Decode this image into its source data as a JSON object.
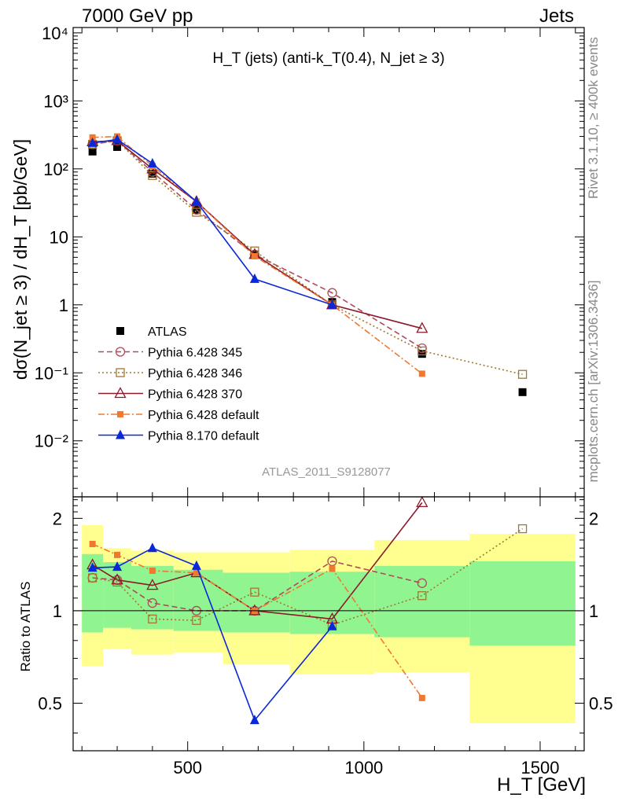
{
  "header": {
    "left": "7000 GeV pp",
    "right": "Jets"
  },
  "side_texts": {
    "rivet": "Rivet 3.1.10, ≥ 400k events",
    "mcplots": "mcplots.cern.ch [arXiv:1306.3436]"
  },
  "chart_data": {
    "type": "line",
    "title": "H_T (jets) (anti-k_T(0.4), N_jet ≥ 3)",
    "analysis_label": "ATLAS_2011_S9128077",
    "xlabel": "H_T [GeV]",
    "ylabel": "dσ(N_jet ≥ 3) / dH_T [pb/GeV]",
    "ratio_ylabel": "Ratio to ATLAS",
    "xlim": [
      175,
      1625
    ],
    "ylim": [
      0.0015,
      12000
    ],
    "ylog": true,
    "ratio_ylim": [
      0.35,
      2.35
    ],
    "x_ticks": [
      500,
      1000,
      1500
    ],
    "y_ticks": [
      {
        "v": 0.01,
        "label": "10⁻²"
      },
      {
        "v": 0.1,
        "label": "10⁻¹"
      },
      {
        "v": 1,
        "label": "1"
      },
      {
        "v": 10,
        "label": "10"
      },
      {
        "v": 100,
        "label": "10²"
      },
      {
        "v": 1000,
        "label": "10³"
      },
      {
        "v": 10000,
        "label": "10⁴"
      }
    ],
    "ratio_ticks": [
      0.5,
      1,
      2
    ],
    "x": [
      230,
      300,
      400,
      525,
      690,
      910,
      1165,
      1450
    ],
    "bands": [
      {
        "x0": 200,
        "x1": 260,
        "y1lo": 0.85,
        "y1hi": 1.53,
        "y2lo": 0.66,
        "y2hi": 1.9
      },
      {
        "x0": 260,
        "x1": 340,
        "y1lo": 0.88,
        "y1hi": 1.44,
        "y2lo": 0.75,
        "y2hi": 1.6
      },
      {
        "x0": 340,
        "x1": 460,
        "y1lo": 0.87,
        "y1hi": 1.4,
        "y2lo": 0.72,
        "y2hi": 1.57
      },
      {
        "x0": 460,
        "x1": 600,
        "y1lo": 0.86,
        "y1hi": 1.36,
        "y2lo": 0.73,
        "y2hi": 1.55
      },
      {
        "x0": 600,
        "x1": 790,
        "y1lo": 0.85,
        "y1hi": 1.33,
        "y2lo": 0.67,
        "y2hi": 1.55
      },
      {
        "x0": 790,
        "x1": 1030,
        "y1lo": 0.84,
        "y1hi": 1.34,
        "y2lo": 0.62,
        "y2hi": 1.58
      },
      {
        "x0": 1030,
        "x1": 1300,
        "y1lo": 0.82,
        "y1hi": 1.4,
        "y2lo": 0.63,
        "y2hi": 1.7
      },
      {
        "x0": 1300,
        "x1": 1600,
        "y1lo": 0.77,
        "y1hi": 1.45,
        "y2lo": 0.43,
        "y2hi": 1.78
      }
    ],
    "series": [
      {
        "name": "ATLAS",
        "color": "#000000",
        "dash": "",
        "marker": "square-filled",
        "values": [
          180,
          210,
          85,
          25,
          5.5,
          1.1,
          0.19,
          0.052
        ],
        "ratio": [
          1,
          1,
          1,
          1,
          1,
          1,
          1,
          1
        ]
      },
      {
        "name": "Pythia 6.428 345",
        "color": "#b04a5a",
        "dash": "7 4",
        "marker": "circle-open",
        "values": [
          230,
          260,
          90,
          25,
          5.5,
          1.5,
          0.23,
          null
        ],
        "ratio": [
          1.28,
          1.26,
          1.06,
          1.0,
          1.0,
          1.45,
          1.23,
          null
        ]
      },
      {
        "name": "Pythia 6.428 346",
        "color": "#a07830",
        "dash": "2 3",
        "marker": "square-open",
        "values": [
          230,
          260,
          80,
          23,
          6.2,
          1.0,
          0.21,
          0.095
        ],
        "ratio": [
          1.28,
          1.24,
          0.94,
          0.93,
          1.15,
          0.9,
          1.12,
          1.85
        ]
      },
      {
        "name": "Pythia 6.428 370",
        "color": "#8b1a2a",
        "dash": "",
        "marker": "triangle-open",
        "values": [
          250,
          260,
          100,
          33,
          5.5,
          1.0,
          0.45,
          null
        ],
        "ratio": [
          1.41,
          1.26,
          1.21,
          1.33,
          1.0,
          0.94,
          2.25,
          null
        ]
      },
      {
        "name": "Pythia 6.428 default",
        "color": "#f07830",
        "dash": "8 3 2 3",
        "marker": "square-small",
        "values": [
          290,
          300,
          110,
          33,
          5.2,
          1.0,
          0.097,
          null
        ],
        "ratio": [
          1.65,
          1.52,
          1.35,
          1.33,
          1.0,
          1.37,
          0.52,
          null
        ]
      },
      {
        "name": "Pythia 8.170 default",
        "color": "#0a28d8",
        "dash": "",
        "marker": "triangle-filled",
        "values": [
          240,
          270,
          120,
          33,
          2.4,
          1.0,
          null,
          null
        ],
        "ratio": [
          1.38,
          1.39,
          1.6,
          1.4,
          0.44,
          0.89,
          null,
          null
        ]
      }
    ]
  }
}
